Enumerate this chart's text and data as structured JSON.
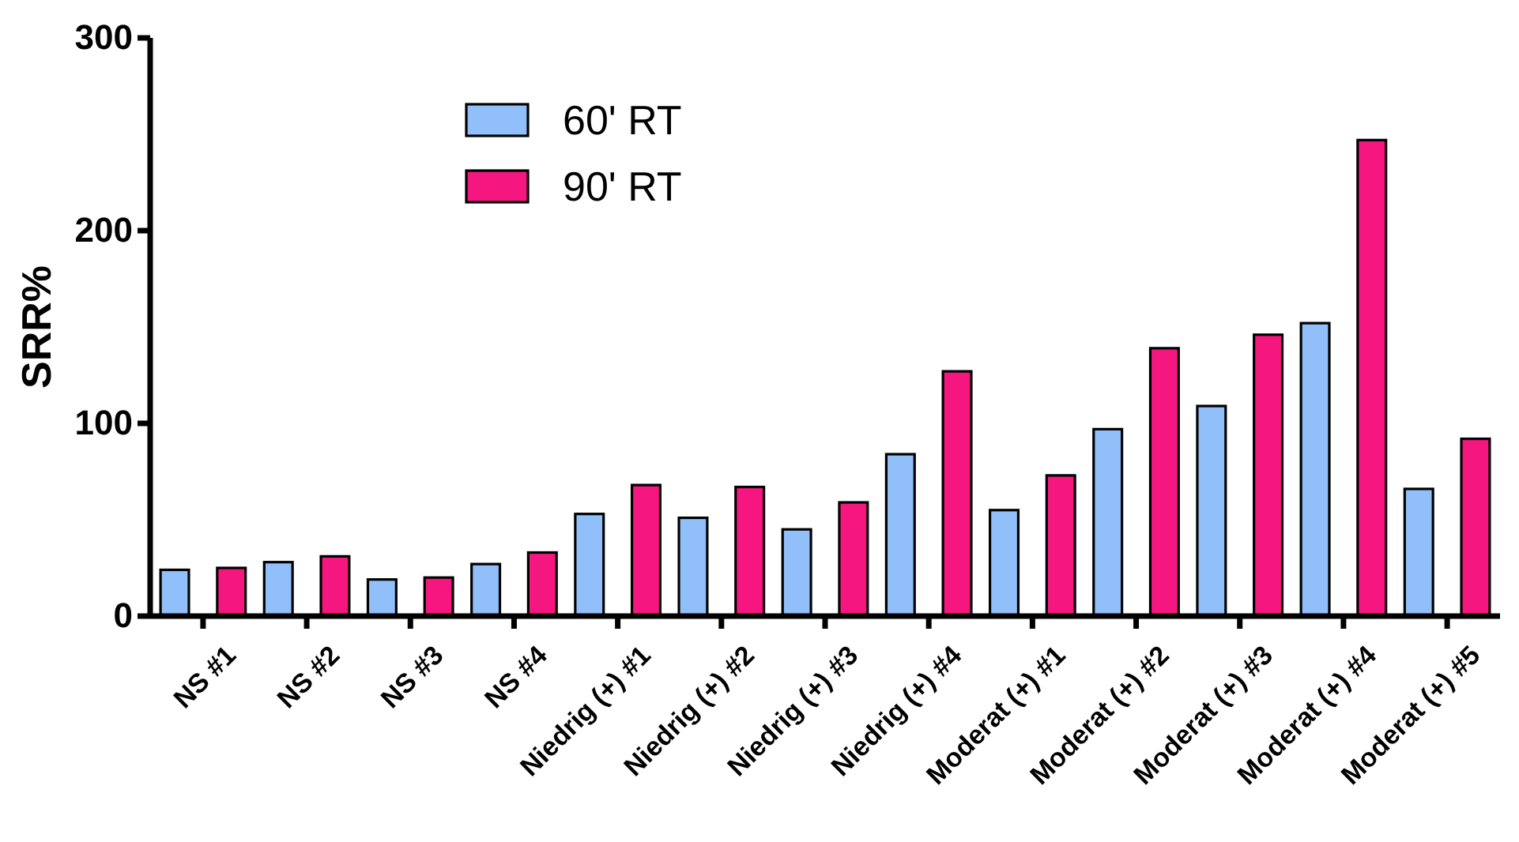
{
  "chart_data": {
    "type": "bar",
    "ylabel": "SRR%",
    "categories": [
      "NS #1",
      "NS #2",
      "NS #3",
      "NS #4",
      "Niedrig (+) #1",
      "Niedrig (+) #2",
      "Niedrig (+) #3",
      "Niedrig (+) #4",
      "Moderat (+) #1",
      "Moderat (+) #2",
      "Moderat (+) #3",
      "Moderat (+) #4",
      "Moderat (+) #5"
    ],
    "series": [
      {
        "name": "60' RT",
        "color": "#90bff9",
        "values": [
          24,
          28,
          19,
          27,
          53,
          51,
          45,
          84,
          55,
          97,
          109,
          152,
          66
        ]
      },
      {
        "name": "90' RT",
        "color": "#f5177f",
        "values": [
          25,
          31,
          20,
          33,
          68,
          67,
          59,
          127,
          73,
          139,
          146,
          247,
          92
        ]
      }
    ],
    "ylim": [
      0,
      300
    ],
    "yticks": [
      0,
      100,
      200,
      300
    ],
    "grid": false,
    "legend": "top left"
  }
}
